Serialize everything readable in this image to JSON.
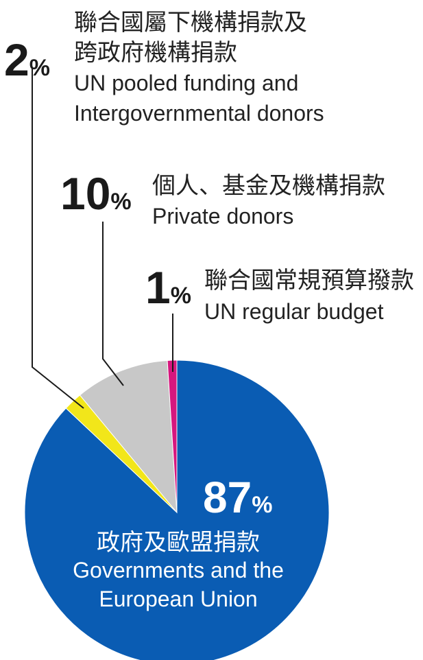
{
  "chart_data": {
    "type": "pie",
    "slices": [
      {
        "value": 87,
        "pct_number": "87",
        "pct_sign": "%",
        "label_zh": "政府及歐盟捐款",
        "label_en_lines": [
          "Governments and the",
          "European Union"
        ],
        "color": "#0a5cb3"
      },
      {
        "value": 2,
        "pct_number": "2",
        "pct_sign": "%",
        "label_zh_lines": [
          "聯合國屬下機構捐款及",
          "跨政府機構捐款"
        ],
        "label_en_lines": [
          "UN pooled funding and",
          "Intergovernmental donors"
        ],
        "color": "#f2e61a"
      },
      {
        "value": 10,
        "pct_number": "10",
        "pct_sign": "%",
        "label_zh": "個人、基金及機構捐款",
        "label_en": "Private donors",
        "color": "#c8c8c8"
      },
      {
        "value": 1,
        "pct_number": "1",
        "pct_sign": "%",
        "label_zh": "聯合國常規預算撥款",
        "label_en": "UN regular budget",
        "color": "#d6177e"
      }
    ]
  }
}
